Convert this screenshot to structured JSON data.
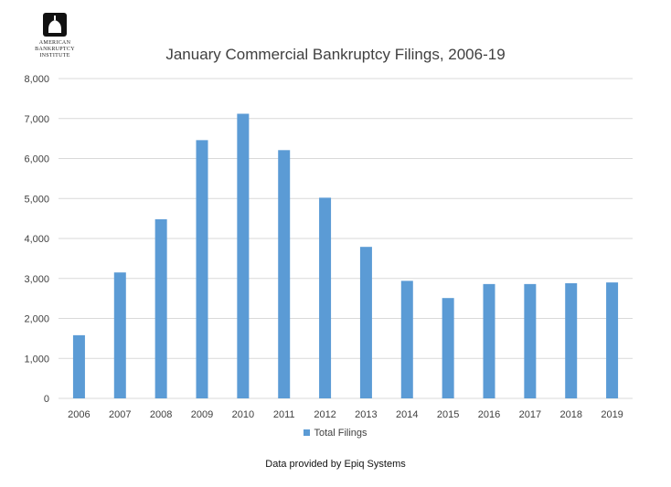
{
  "logo": {
    "lines": [
      "AMERICAN",
      "BANKRUPTCY",
      "INSTITUTE"
    ]
  },
  "chart_data": {
    "type": "bar",
    "title": "January Commercial Bankruptcy Filings, 2006-19",
    "categories": [
      "2006",
      "2007",
      "2008",
      "2009",
      "2010",
      "2011",
      "2012",
      "2013",
      "2014",
      "2015",
      "2016",
      "2017",
      "2018",
      "2019"
    ],
    "series": [
      {
        "name": "Total Filings",
        "values": [
          1580,
          3150,
          4480,
          6460,
          7120,
          6210,
          5020,
          3790,
          2940,
          2510,
          2860,
          2860,
          2880,
          2900
        ]
      }
    ],
    "ylim": [
      0,
      8000
    ],
    "yticks": [
      "0",
      "1,000",
      "2,000",
      "3,000",
      "4,000",
      "5,000",
      "6,000",
      "7,000",
      "8,000"
    ],
    "ytick_values": [
      0,
      1000,
      2000,
      3000,
      4000,
      5000,
      6000,
      7000,
      8000
    ],
    "grid": true,
    "legend_position": "bottom",
    "bar_color": "#5b9bd5",
    "grid_color": "#d9d9d9",
    "text_color": "#404040"
  },
  "footnote": "Data provided by Epiq Systems"
}
